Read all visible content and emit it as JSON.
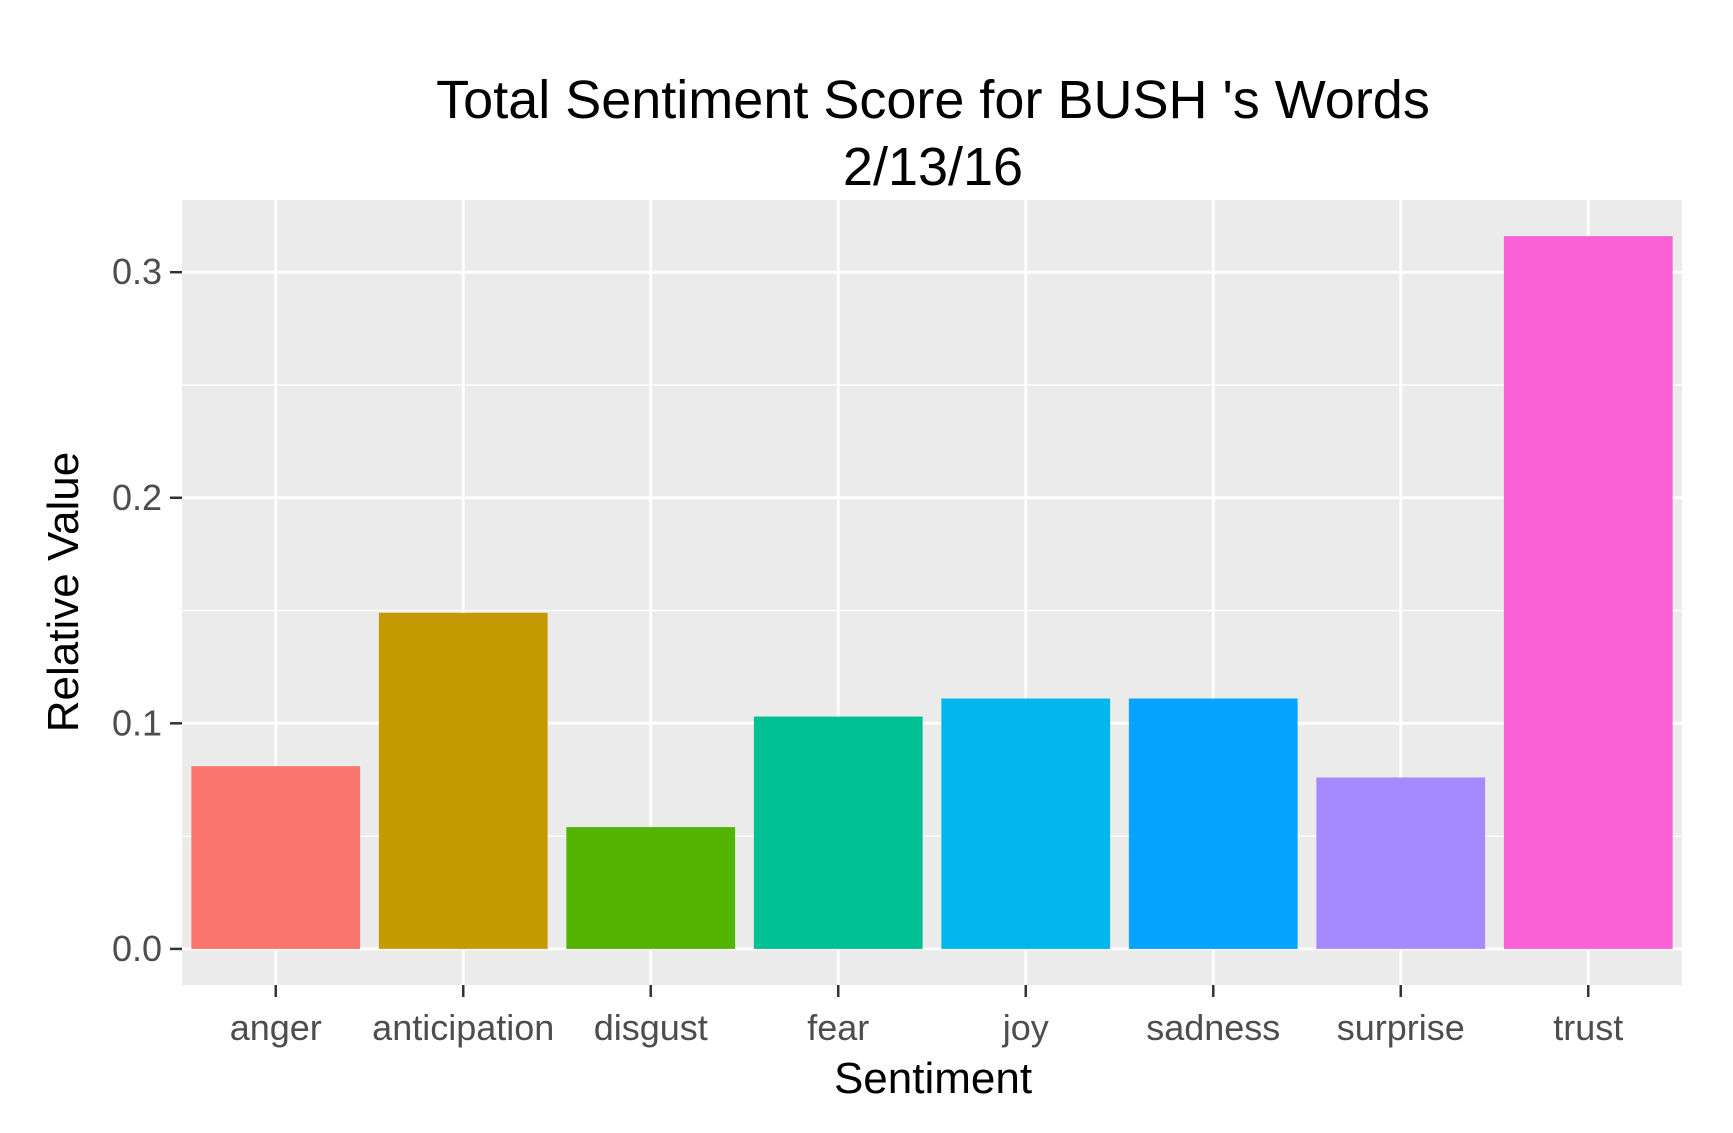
{
  "chart_data": {
    "type": "bar",
    "title": "Total Sentiment Score for BUSH 's Words",
    "subtitle": "2/13/16",
    "xlabel": "Sentiment",
    "ylabel": "Relative Value",
    "categories": [
      "anger",
      "anticipation",
      "disgust",
      "fear",
      "joy",
      "sadness",
      "surprise",
      "trust"
    ],
    "values": [
      0.081,
      0.149,
      0.054,
      0.103,
      0.111,
      0.111,
      0.076,
      0.316
    ],
    "colors": [
      "#F8766D",
      "#C49A00",
      "#53B400",
      "#00C094",
      "#00B6EB",
      "#06A4FF",
      "#A58AFF",
      "#FB61D7"
    ],
    "yticks": [
      0.0,
      0.1,
      0.2,
      0.3
    ],
    "ytick_labels": [
      "0.0",
      "0.1",
      "0.2",
      "0.3"
    ],
    "ylim": [
      -0.016,
      0.332
    ],
    "grid": true,
    "legend": "none",
    "panel_background": "#EBEBEB",
    "gridline_color": "#FFFFFF"
  }
}
